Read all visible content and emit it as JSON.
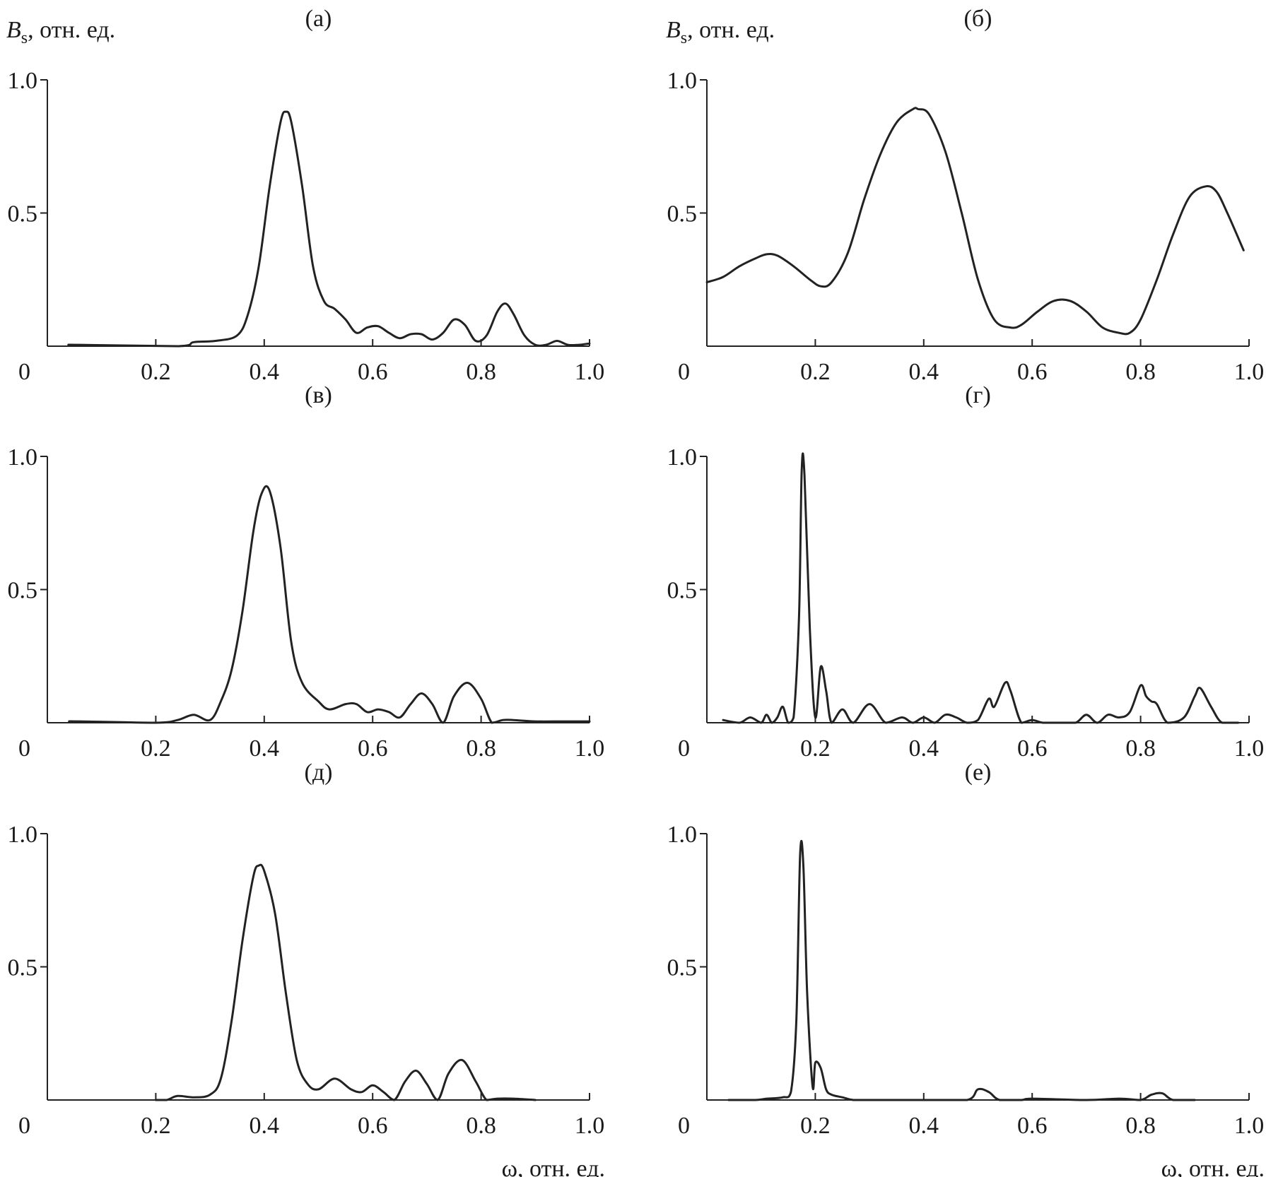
{
  "chart_data": [
    {
      "type": "line",
      "panel_label": "(а)",
      "ylabel_var": "B",
      "ylabel_sub": "s",
      "ylabel_unit": ", отн. ед.",
      "xlabel": "",
      "xlim": [
        0,
        1.0
      ],
      "ylim": [
        0,
        1.0
      ],
      "x_ticks": [
        "0",
        "0.2",
        "0.4",
        "0.6",
        "0.8",
        "1.0"
      ],
      "y_ticks": [
        "1.0",
        "0.5"
      ],
      "series": [
        {
          "x": [
            0.04,
            0.06,
            0.24,
            0.27,
            0.31,
            0.35,
            0.37,
            0.39,
            0.41,
            0.43,
            0.44,
            0.45,
            0.47,
            0.49,
            0.51,
            0.53,
            0.55,
            0.57,
            0.59,
            0.61,
            0.63,
            0.65,
            0.67,
            0.69,
            0.71,
            0.73,
            0.75,
            0.77,
            0.79,
            0.81,
            0.83,
            0.845,
            0.86,
            0.88,
            0.9,
            0.92,
            0.94,
            0.96,
            0.98,
            1.0
          ],
          "y": [
            0.005,
            0.005,
            0.0,
            0.015,
            0.02,
            0.04,
            0.12,
            0.3,
            0.6,
            0.84,
            0.88,
            0.84,
            0.6,
            0.3,
            0.17,
            0.14,
            0.1,
            0.05,
            0.07,
            0.075,
            0.05,
            0.03,
            0.045,
            0.045,
            0.025,
            0.05,
            0.1,
            0.08,
            0.02,
            0.04,
            0.13,
            0.16,
            0.12,
            0.04,
            0.005,
            0.005,
            0.02,
            0.005,
            0.005,
            0.01
          ]
        }
      ]
    },
    {
      "type": "line",
      "panel_label": "(б)",
      "ylabel_var": "B",
      "ylabel_sub": "s",
      "ylabel_unit": ", отн. ед.",
      "xlabel": "",
      "xlim": [
        0,
        1.0
      ],
      "ylim": [
        0,
        1.0
      ],
      "x_ticks": [
        "0",
        "0.2",
        "0.4",
        "0.6",
        "0.8",
        "1.0"
      ],
      "y_ticks": [
        "1.0",
        "0.5"
      ],
      "series": [
        {
          "x": [
            0.0,
            0.03,
            0.06,
            0.09,
            0.11,
            0.13,
            0.16,
            0.19,
            0.21,
            0.23,
            0.26,
            0.29,
            0.32,
            0.35,
            0.38,
            0.39,
            0.41,
            0.44,
            0.47,
            0.5,
            0.53,
            0.56,
            0.58,
            0.61,
            0.64,
            0.67,
            0.7,
            0.73,
            0.76,
            0.78,
            0.8,
            0.83,
            0.86,
            0.89,
            0.92,
            0.94,
            0.96,
            0.99
          ],
          "y": [
            0.24,
            0.26,
            0.3,
            0.33,
            0.345,
            0.34,
            0.3,
            0.25,
            0.225,
            0.24,
            0.35,
            0.55,
            0.72,
            0.84,
            0.89,
            0.89,
            0.87,
            0.73,
            0.5,
            0.25,
            0.1,
            0.07,
            0.08,
            0.13,
            0.17,
            0.17,
            0.13,
            0.07,
            0.05,
            0.05,
            0.1,
            0.25,
            0.42,
            0.56,
            0.6,
            0.58,
            0.5,
            0.36
          ]
        }
      ]
    },
    {
      "type": "line",
      "panel_label": "(в)",
      "ylabel_var": "",
      "ylabel_sub": "",
      "ylabel_unit": "",
      "xlabel": "",
      "xlim": [
        0,
        1.0
      ],
      "ylim": [
        0,
        1.0
      ],
      "x_ticks": [
        "0",
        "0.2",
        "0.4",
        "0.6",
        "0.8",
        "1.0"
      ],
      "y_ticks": [
        "1.0",
        "0.5"
      ],
      "series": [
        {
          "x": [
            0.04,
            0.06,
            0.2,
            0.24,
            0.27,
            0.3,
            0.32,
            0.34,
            0.36,
            0.38,
            0.395,
            0.41,
            0.43,
            0.45,
            0.47,
            0.5,
            0.52,
            0.55,
            0.57,
            0.59,
            0.61,
            0.63,
            0.65,
            0.67,
            0.69,
            0.71,
            0.73,
            0.75,
            0.775,
            0.8,
            0.82,
            0.84,
            0.86,
            0.9,
            0.95,
            1.0
          ],
          "y": [
            0.005,
            0.005,
            0.0,
            0.01,
            0.03,
            0.01,
            0.08,
            0.2,
            0.42,
            0.72,
            0.86,
            0.87,
            0.66,
            0.3,
            0.15,
            0.08,
            0.05,
            0.07,
            0.07,
            0.04,
            0.05,
            0.04,
            0.02,
            0.07,
            0.11,
            0.07,
            0.0,
            0.1,
            0.15,
            0.09,
            0.0,
            0.01,
            0.01,
            0.005,
            0.005,
            0.005
          ]
        }
      ]
    },
    {
      "type": "line",
      "panel_label": "(г)",
      "ylabel_var": "",
      "ylabel_sub": "",
      "ylabel_unit": "",
      "xlabel": "",
      "xlim": [
        0,
        1.0
      ],
      "ylim": [
        0,
        1.0
      ],
      "x_ticks": [
        "0",
        "0.2",
        "0.4",
        "0.6",
        "0.8",
        "1.0"
      ],
      "y_ticks": [
        "1.0",
        "0.5"
      ],
      "series": [
        {
          "x": [
            0.03,
            0.06,
            0.08,
            0.1,
            0.11,
            0.12,
            0.13,
            0.14,
            0.15,
            0.16,
            0.17,
            0.175,
            0.18,
            0.19,
            0.2,
            0.21,
            0.22,
            0.23,
            0.25,
            0.27,
            0.3,
            0.33,
            0.36,
            0.38,
            0.4,
            0.42,
            0.44,
            0.46,
            0.48,
            0.5,
            0.52,
            0.53,
            0.55,
            0.56,
            0.58,
            0.6,
            0.62,
            0.65,
            0.68,
            0.7,
            0.72,
            0.74,
            0.76,
            0.78,
            0.8,
            0.81,
            0.82,
            0.83,
            0.85,
            0.88,
            0.9,
            0.91,
            0.93,
            0.95,
            0.98
          ],
          "y": [
            0.01,
            0.0,
            0.02,
            0.0,
            0.03,
            0.0,
            0.02,
            0.06,
            0.0,
            0.02,
            0.4,
            0.95,
            0.93,
            0.35,
            0.02,
            0.21,
            0.12,
            0.0,
            0.05,
            0.0,
            0.07,
            0.0,
            0.02,
            0.0,
            0.02,
            0.0,
            0.03,
            0.02,
            0.0,
            0.01,
            0.09,
            0.06,
            0.15,
            0.12,
            0.0,
            0.01,
            0.0,
            0.0,
            0.0,
            0.03,
            0.0,
            0.03,
            0.02,
            0.04,
            0.14,
            0.1,
            0.08,
            0.07,
            0.0,
            0.02,
            0.1,
            0.13,
            0.06,
            0.0,
            0.0
          ]
        }
      ]
    },
    {
      "type": "line",
      "panel_label": "(д)",
      "ylabel_var": "",
      "ylabel_sub": "",
      "ylabel_unit": "",
      "xlabel": "ω, отн. ед.",
      "xlim": [
        0,
        1.0
      ],
      "ylim": [
        0,
        1.0
      ],
      "x_ticks": [
        "0",
        "0.2",
        "0.4",
        "0.6",
        "0.8",
        "1.0"
      ],
      "y_ticks": [
        "1.0",
        "0.5"
      ],
      "series": [
        {
          "x": [
            0.2,
            0.22,
            0.24,
            0.27,
            0.3,
            0.32,
            0.34,
            0.36,
            0.38,
            0.39,
            0.4,
            0.42,
            0.44,
            0.46,
            0.48,
            0.5,
            0.53,
            0.56,
            0.58,
            0.6,
            0.62,
            0.64,
            0.66,
            0.68,
            0.7,
            0.72,
            0.74,
            0.765,
            0.79,
            0.81,
            0.83,
            0.86,
            0.9
          ],
          "y": [
            0.0,
            0.0,
            0.015,
            0.01,
            0.02,
            0.08,
            0.3,
            0.6,
            0.84,
            0.88,
            0.86,
            0.7,
            0.4,
            0.15,
            0.06,
            0.04,
            0.08,
            0.04,
            0.03,
            0.055,
            0.03,
            0.0,
            0.07,
            0.11,
            0.06,
            0.0,
            0.1,
            0.15,
            0.07,
            0.0,
            0.005,
            0.005,
            0.0
          ]
        }
      ]
    },
    {
      "type": "line",
      "panel_label": "(е)",
      "ylabel_var": "",
      "ylabel_sub": "",
      "ylabel_unit": "",
      "xlabel": "ω, отн. ед.",
      "xlim": [
        0,
        1.0
      ],
      "ylim": [
        0,
        1.0
      ],
      "x_ticks": [
        "0",
        "0.2",
        "0.4",
        "0.6",
        "0.8",
        "1.0"
      ],
      "y_ticks": [
        "1.0",
        "0.5"
      ],
      "series": [
        {
          "x": [
            0.04,
            0.09,
            0.11,
            0.14,
            0.155,
            0.165,
            0.172,
            0.178,
            0.185,
            0.195,
            0.2,
            0.21,
            0.22,
            0.23,
            0.25,
            0.27,
            0.3,
            0.4,
            0.48,
            0.5,
            0.52,
            0.54,
            0.58,
            0.6,
            0.7,
            0.76,
            0.8,
            0.82,
            0.84,
            0.86,
            0.9
          ],
          "y": [
            0.0,
            0.0,
            0.005,
            0.01,
            0.03,
            0.3,
            0.92,
            0.88,
            0.4,
            0.05,
            0.14,
            0.12,
            0.04,
            0.02,
            0.01,
            0.0,
            0.0,
            0.0,
            0.0,
            0.04,
            0.03,
            0.0,
            0.0,
            0.005,
            0.0,
            0.005,
            0.0,
            0.02,
            0.025,
            0.0,
            0.0
          ]
        }
      ]
    }
  ]
}
